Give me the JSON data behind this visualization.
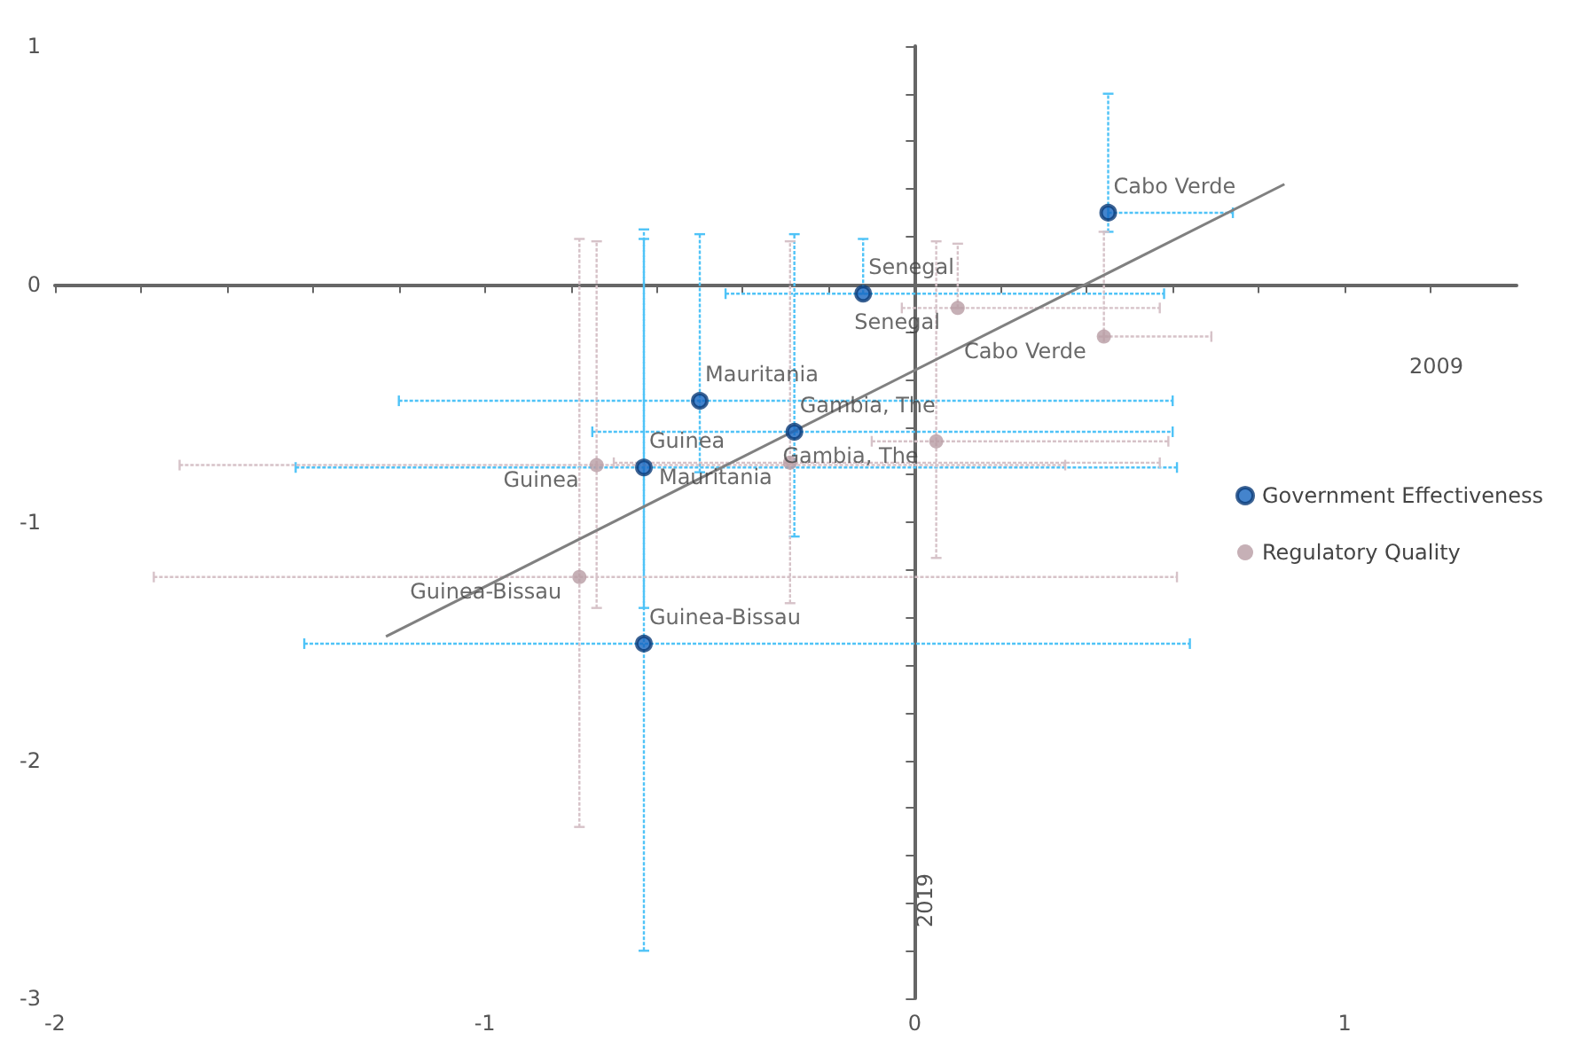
{
  "chart_data": {
    "type": "scatter",
    "xlabel": "2009",
    "ylabel": "2019",
    "xlim": [
      -2,
      1.4
    ],
    "ylim": [
      -3,
      1
    ],
    "xticks": [
      -2,
      {
        "value": -1.8,
        "label": null
      },
      {
        "value": -1.6,
        "label": null
      },
      {
        "value": -1.4,
        "label": null
      },
      {
        "value": -1.2,
        "label": null
      },
      -1,
      {
        "value": -0.8,
        "label": null
      },
      {
        "value": -0.6,
        "label": null
      },
      {
        "value": -0.4,
        "label": null
      },
      {
        "value": -0.2,
        "label": null
      },
      0,
      {
        "value": 0.2,
        "label": null
      },
      {
        "value": 0.4,
        "label": null
      },
      {
        "value": 0.6,
        "label": null
      },
      {
        "value": 0.8,
        "label": null
      },
      1,
      {
        "value": 1.2,
        "label": null
      }
    ],
    "yticks": [
      -3,
      {
        "value": -2.8,
        "label": null
      },
      {
        "value": -2.6,
        "label": null
      },
      {
        "value": -2.4,
        "label": null
      },
      {
        "value": -2.2,
        "label": null
      },
      -2,
      {
        "value": -1.8,
        "label": null
      },
      {
        "value": -1.6,
        "label": null
      },
      {
        "value": -1.4,
        "label": null
      },
      {
        "value": -1.2,
        "label": null
      },
      -1,
      {
        "value": -0.8,
        "label": null
      },
      {
        "value": -0.6,
        "label": null
      },
      {
        "value": -0.4,
        "label": null
      },
      {
        "value": -0.2,
        "label": null
      },
      0,
      {
        "value": 0.2,
        "label": null
      },
      {
        "value": 0.4,
        "label": null
      },
      {
        "value": 0.6,
        "label": null
      },
      {
        "value": 0.8,
        "label": null
      },
      1
    ],
    "legend": "right",
    "marker": "circle",
    "series": [
      {
        "name": "Government Effectiveness",
        "color": "#1565c0",
        "x": [
          0.45,
          -0.12,
          -0.5,
          -0.28,
          -0.63,
          -0.63
        ],
        "values": [
          0.3,
          -0.04,
          -0.49,
          -0.62,
          -0.77,
          -1.51
        ],
        "value_labels": [
          "Cabo Verde",
          "Senegal",
          "Mauritania",
          "Gambia, The",
          "Guinea",
          "Guinea-Bissau"
        ],
        "errors": [
          [
            0.22,
            0.8
          ],
          [
            -0.04,
            0.19
          ],
          [
            -0.79,
            0.21
          ],
          [
            -1.06,
            0.21
          ],
          [
            -1.36,
            0.23
          ],
          [
            -2.8,
            0.19
          ]
        ],
        "xerrors": [
          [
            0.45,
            0.74
          ],
          [
            -0.44,
            0.58
          ],
          [
            -1.2,
            0.6
          ],
          [
            -0.75,
            0.6
          ],
          [
            -1.44,
            0.61
          ],
          [
            -1.42,
            0.64
          ]
        ]
      },
      {
        "name": "Regulatory Quality",
        "color": "#b89ca4",
        "x": [
          0.44,
          0.1,
          0.05,
          -0.29,
          -0.74,
          -0.78
        ],
        "values": [
          -0.22,
          -0.1,
          -0.66,
          -0.75,
          -0.76,
          -1.23
        ],
        "value_labels": [
          "Cabo Verde",
          "Senegal",
          "Gambia, The",
          "Mauritania",
          "Guinea",
          "Guinea-Bissau"
        ],
        "errors": [
          [
            -0.22,
            0.22
          ],
          [
            -0.1,
            0.17
          ],
          [
            -1.15,
            0.18
          ],
          [
            -1.34,
            0.18
          ],
          [
            -1.36,
            0.18
          ],
          [
            -2.28,
            0.19
          ]
        ],
        "xerrors": [
          [
            0.44,
            0.69
          ],
          [
            -0.03,
            0.57
          ],
          [
            -0.1,
            0.59
          ],
          [
            -0.7,
            0.57
          ],
          [
            -1.71,
            0.35
          ],
          [
            -1.77,
            0.61
          ]
        ]
      },
      {
        "type": "line",
        "color": "#808080",
        "x": [
          -1.23,
          0.86
        ],
        "values": [
          -1.48,
          0.42
        ],
        "marker": "none"
      }
    ]
  }
}
